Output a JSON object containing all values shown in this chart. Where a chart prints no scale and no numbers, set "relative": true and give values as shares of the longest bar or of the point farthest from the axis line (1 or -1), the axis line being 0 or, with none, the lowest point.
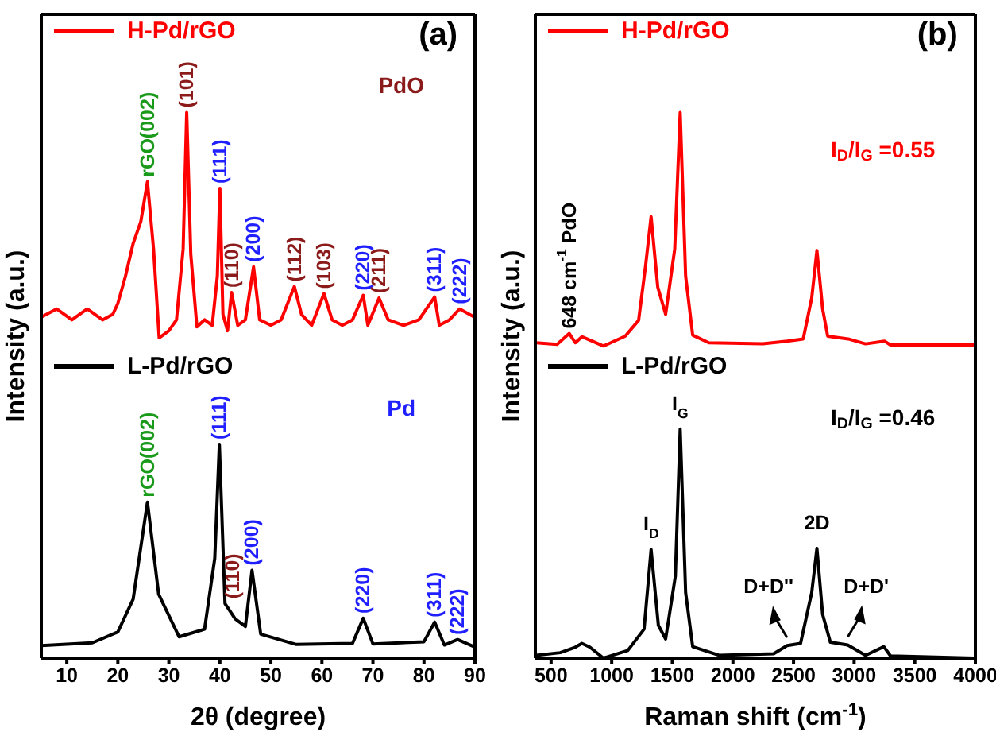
{
  "chart_data": [
    {
      "type": "line",
      "relative": true,
      "xlabel": "2θ (degree)",
      "ylabel": "Intensity (a.u.)",
      "xlim": [
        5,
        90
      ],
      "xticks": [
        10,
        20,
        30,
        40,
        50,
        60,
        70,
        80,
        90
      ],
      "legend": "top left",
      "series": [
        {
          "name": "H-Pd/rGO",
          "color": "#ff0000",
          "x": [
            5.2,
            8,
            11,
            14,
            17,
            19,
            20,
            21.5,
            23,
            24.5,
            25.8,
            27,
            28.1,
            30,
            31.5,
            32.8,
            33.5,
            34.3,
            35.5,
            37,
            38.5,
            39.5,
            40,
            40.6,
            41.5,
            42.3,
            43.5,
            45,
            46.6,
            47.8,
            50,
            52,
            54.6,
            56,
            58,
            60.4,
            62,
            64,
            66,
            68.1,
            69,
            71.2,
            73,
            76,
            79,
            82.1,
            83,
            85,
            87,
            89.7
          ],
          "values": [
            0.626,
            0.64,
            0.62,
            0.64,
            0.62,
            0.63,
            0.65,
            0.7,
            0.76,
            0.8,
            0.873,
            0.75,
            0.587,
            0.6,
            0.62,
            0.75,
            1.0,
            0.74,
            0.607,
            0.62,
            0.61,
            0.7,
            0.861,
            0.63,
            0.6,
            0.67,
            0.61,
            0.62,
            0.717,
            0.62,
            0.61,
            0.62,
            0.681,
            0.63,
            0.61,
            0.668,
            0.62,
            0.61,
            0.62,
            0.665,
            0.61,
            0.66,
            0.62,
            0.61,
            0.62,
            0.662,
            0.61,
            0.62,
            0.64,
            0.626
          ]
        },
        {
          "name": "L-Pd/rGO",
          "color": "#000000",
          "x": [
            5,
            15,
            20,
            23,
            25.8,
            28,
            32,
            37,
            39,
            39.9,
            41,
            43,
            45,
            46.3,
            48,
            55,
            66,
            68.1,
            70,
            80,
            82.1,
            84,
            86.6,
            90
          ],
          "values": [
            0.023,
            0.028,
            0.048,
            0.108,
            0.286,
            0.117,
            0.039,
            0.053,
            0.183,
            0.392,
            0.1,
            0.072,
            0.058,
            0.161,
            0.044,
            0.025,
            0.027,
            0.073,
            0.026,
            0.03,
            0.066,
            0.024,
            0.034,
            0.02
          ]
        }
      ],
      "annotations": [
        "(a)",
        "PdO",
        "Pd",
        {
          "text": "rGO(002)",
          "x": 25.8,
          "y": 0.873
        },
        {
          "text": "(101)",
          "x": 33.5,
          "y": 1.0
        },
        {
          "text": "(111)",
          "x": 40,
          "y": 0.861
        },
        {
          "text": "(110)",
          "x": 42.3,
          "y": 0.67
        },
        {
          "text": "(200)",
          "x": 46.6,
          "y": 0.717
        },
        {
          "text": "(112)",
          "x": 54.6,
          "y": 0.681
        },
        {
          "text": "(103)",
          "x": 60.4,
          "y": 0.668
        },
        {
          "text": "(220)",
          "x": 68.1,
          "y": 0.665
        },
        {
          "text": "(211)",
          "x": 71.2,
          "y": 0.66
        },
        {
          "text": "(311)",
          "x": 82.1,
          "y": 0.662
        },
        {
          "text": "(222)",
          "x": 87,
          "y": 0.64
        },
        {
          "text": "rGO(002)",
          "x": 25.8,
          "y": 0.286
        },
        {
          "text": "(111)",
          "x": 39.9,
          "y": 0.392
        },
        {
          "text": "(110)",
          "x": 42.5,
          "y": 0.1
        },
        {
          "text": "(200)",
          "x": 46.3,
          "y": 0.161
        },
        {
          "text": "(220)",
          "x": 68.1,
          "y": 0.073
        },
        {
          "text": "(311)",
          "x": 82.1,
          "y": 0.066
        },
        {
          "text": "(222)",
          "x": 86.6,
          "y": 0.034
        }
      ]
    },
    {
      "type": "line",
      "relative": true,
      "xlabel": "Raman shift (cm$^{-1}$)",
      "ylabel": "Intensity (a.u.)",
      "xlim": [
        370,
        4000
      ],
      "xticks": [
        500,
        1000,
        1500,
        2000,
        2500,
        3000,
        3500,
        4000
      ],
      "legend": "top left",
      "series": [
        {
          "name": "H-Pd/rGO",
          "color": "#ff0000",
          "x": [
            376,
            550,
            650,
            700,
            754,
            850,
            932,
            1111,
            1222,
            1280,
            1325,
            1380,
            1445,
            1520,
            1565,
            1610,
            1668,
            1801,
            2247,
            2447,
            2580,
            2650,
            2693,
            2740,
            2782,
            2951,
            3094,
            3250,
            3300,
            3995
          ],
          "values": [
            0.578,
            0.575,
            0.595,
            0.578,
            0.589,
            0.58,
            0.572,
            0.59,
            0.619,
            0.72,
            0.809,
            0.68,
            0.63,
            0.75,
            1.0,
            0.7,
            0.592,
            0.578,
            0.576,
            0.581,
            0.585,
            0.66,
            0.747,
            0.64,
            0.59,
            0.585,
            0.576,
            0.581,
            0.574,
            0.574
          ]
        },
        {
          "name": "L-Pd/rGO",
          "color": "#000000",
          "x": [
            376,
            576,
            700,
            754,
            820,
            932,
            1133,
            1267,
            1325,
            1385,
            1445,
            1525,
            1565,
            1610,
            1668,
            1890,
            2336,
            2447,
            2558,
            2650,
            2693,
            2740,
            2804,
            2947,
            3094,
            3245,
            3300,
            3986
          ],
          "values": [
            0.005,
            0.01,
            0.02,
            0.027,
            0.02,
            0.0,
            0.014,
            0.053,
            0.199,
            0.06,
            0.035,
            0.15,
            0.42,
            0.12,
            0.021,
            0.005,
            0.008,
            0.023,
            0.027,
            0.12,
            0.201,
            0.08,
            0.029,
            0.024,
            0.005,
            0.021,
            0.004,
            0.0
          ]
        }
      ],
      "annotations": [
        "(b)",
        "I$_{D}$/I$_{G}$ =0.55",
        "I$_{D}$/I$_{G}$ =0.46",
        {
          "text": "648 cm$^{-1}$ PdO",
          "x": 650,
          "y": 0.595
        },
        {
          "text": "I$_{D}$",
          "x": 1325,
          "y": 0.199
        },
        {
          "text": "I$_{G}$",
          "x": 1565,
          "y": 0.42
        },
        {
          "text": "2D",
          "x": 2693,
          "y": 0.201
        },
        {
          "text": "D+D''",
          "x": 2447,
          "y": 0.023
        },
        {
          "text": "D+D'",
          "x": 2947,
          "y": 0.024
        }
      ]
    }
  ]
}
